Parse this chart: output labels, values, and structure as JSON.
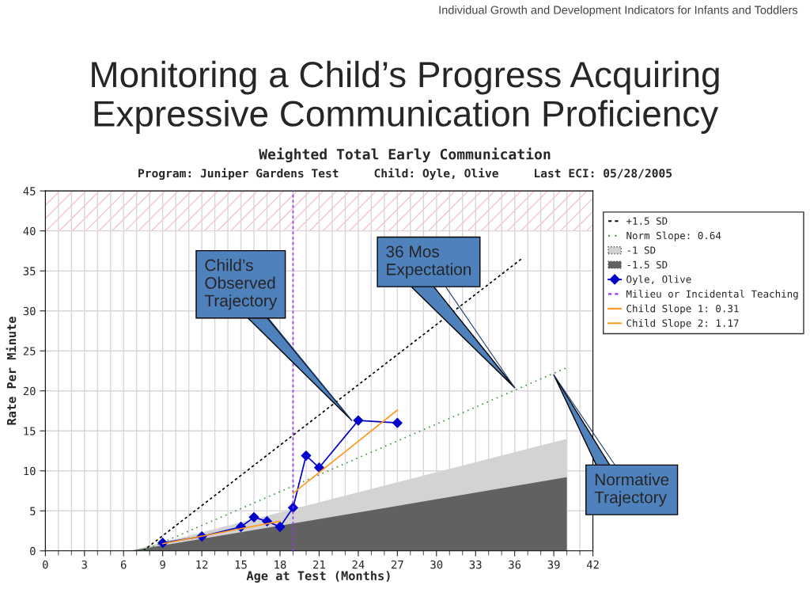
{
  "chart_data": {
    "type": "line",
    "title": "Monitoring a Child’s Progress Acquiring Expressive Communication Proficiency",
    "subtitle": "Weighted Total Early Communication",
    "xlabel": "Age at Test (Months)",
    "ylabel": "Rate Per Minute",
    "annotations": [
      "Individual Growth and Development Indicators for Infants and Toddlers",
      "Program: Juniper Gardens Test     Child: Oyle, Olive     Last ECI: 05/28/2005",
      {
        "text": "Child’s\nObserved\nTrajectory",
        "x": 23.5,
        "y": 16.3
      },
      {
        "text": "36 Mos\nExpectation",
        "x": 36,
        "y": 20.4
      },
      {
        "text": "Normative\nTrajectory",
        "x": 39,
        "y": 22
      }
    ],
    "xlim": [
      0,
      42
    ],
    "xticks": [
      0,
      3,
      6,
      9,
      12,
      15,
      18,
      21,
      24,
      27,
      30,
      33,
      36,
      39,
      42
    ],
    "ylim": [
      0,
      45
    ],
    "yticks": [
      0,
      5,
      10,
      15,
      20,
      25,
      30,
      35,
      40,
      45
    ],
    "grid": true,
    "legend": "right",
    "series": [
      {
        "name": "+1.5 SD",
        "type": "line",
        "color": "#000000",
        "line_style": "dashed",
        "x": [
          7.5,
          36.6
        ],
        "values": [
          0,
          36.6
        ]
      },
      {
        "name": "Norm Slope: 0.64",
        "type": "line",
        "color": "#339933",
        "line_style": "dotted",
        "x": [
          7.5,
          40
        ],
        "values": [
          0,
          22.9
        ]
      },
      {
        "name": "-1 SD",
        "type": "area",
        "color": "#d3d3d3",
        "x": [
          6.5,
          40
        ],
        "values": [
          0,
          14.0
        ]
      },
      {
        "name": "-1.5 SD",
        "type": "area",
        "color": "#616161",
        "x": [
          6.5,
          40
        ],
        "values": [
          0,
          9.2
        ]
      },
      {
        "name": "Oyle, Olive",
        "type": "line",
        "color": "#0000cc",
        "marker": "diamond",
        "line_style": "solid",
        "x": [
          9,
          12,
          15,
          16,
          17,
          18,
          19,
          20,
          21,
          24,
          27
        ],
        "values": [
          1.0,
          1.8,
          3.0,
          4.2,
          3.7,
          3.0,
          5.4,
          11.9,
          10.4,
          16.3,
          16.0
        ]
      },
      {
        "name": "Milieu or Incidental Teaching",
        "type": "line",
        "color": "#9933ff",
        "line_style": "dashed",
        "x": [
          19,
          19
        ],
        "values": [
          0,
          45
        ]
      },
      {
        "name": "Child Slope 1: 0.31",
        "type": "line",
        "color": "#ff9922",
        "line_style": "solid",
        "x": [
          9,
          18
        ],
        "values": [
          0.9,
          3.7
        ]
      },
      {
        "name": "Child Slope 2: 1.17",
        "type": "line",
        "color": "#ff9922",
        "line_style": "solid",
        "x": [
          19,
          27
        ],
        "values": [
          7.2,
          17.6
        ]
      }
    ],
    "bands": [
      {
        "axis": "y",
        "from": 40,
        "to": 45,
        "color": "#f2c4cc"
      }
    ]
  }
}
